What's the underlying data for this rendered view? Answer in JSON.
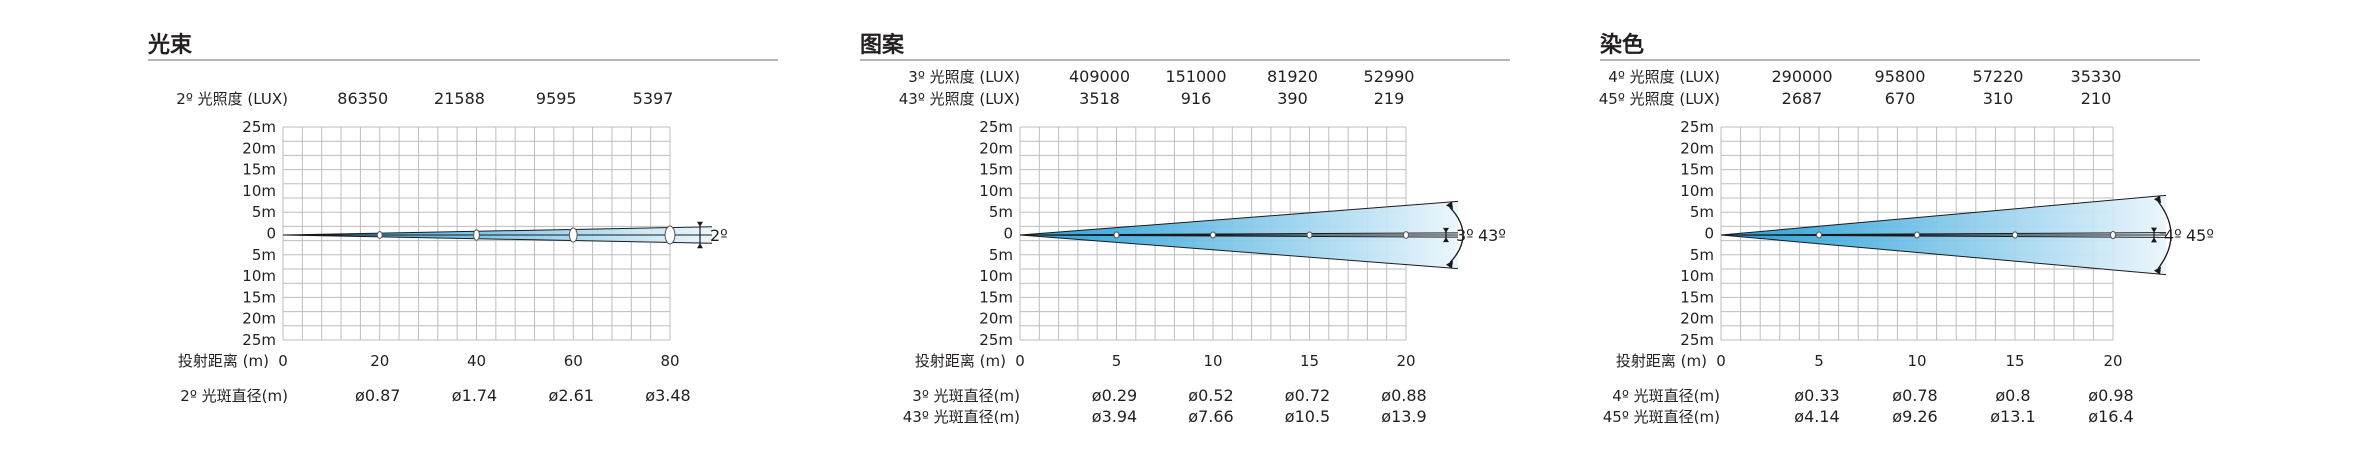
{
  "panels": [
    {
      "title": "光束",
      "lux_rows": [
        {
          "label": "2º 光照度 (LUX)",
          "values": [
            "86350",
            "21588",
            "9595",
            "5397"
          ]
        }
      ],
      "y_ticks": [
        "25m",
        "20m",
        "15m",
        "10m",
        "5m",
        "0",
        "5m",
        "10m",
        "15m",
        "20m",
        "25m"
      ],
      "x_label": "投射距离 (m)",
      "x_ticks": [
        "0",
        "20",
        "40",
        "60",
        "80"
      ],
      "diameter_rows": [
        {
          "label": "2º 光斑直径(m)",
          "values": [
            "ø0.87",
            "ø1.74",
            "ø2.61",
            "ø3.48"
          ]
        }
      ],
      "beams": [
        {
          "angle_label": "2º",
          "half_width_at_end_m": 1.74
        }
      ]
    },
    {
      "title": "图案",
      "lux_rows": [
        {
          "label": "3º 光照度 (LUX)",
          "values": [
            "409000",
            "151000",
            "81920",
            "52990"
          ]
        },
        {
          "label": "43º 光照度 (LUX)",
          "values": [
            "3518",
            "916",
            "390",
            "219"
          ]
        }
      ],
      "y_ticks": [
        "25m",
        "20m",
        "15m",
        "10m",
        "5m",
        "0",
        "5m",
        "10m",
        "15m",
        "20m",
        "25m"
      ],
      "x_label": "投射距离 (m)",
      "x_ticks": [
        "0",
        "5",
        "10",
        "15",
        "20"
      ],
      "diameter_rows": [
        {
          "label": "3º 光斑直径(m)",
          "values": [
            "ø0.29",
            "ø0.52",
            "ø0.72",
            "ø0.88"
          ]
        },
        {
          "label": "43º 光斑直径(m)",
          "values": [
            "ø3.94",
            "ø7.66",
            "ø10.5",
            "ø13.9"
          ]
        }
      ],
      "beams": [
        {
          "angle_label": "43º",
          "half_width_at_end_m": 6.95
        },
        {
          "angle_label": "3º",
          "half_width_at_end_m": 0.44
        }
      ]
    },
    {
      "title": "染色",
      "lux_rows": [
        {
          "label": "4º 光照度 (LUX)",
          "values": [
            "290000",
            "95800",
            "57220",
            "35330"
          ]
        },
        {
          "label": "45º 光照度 (LUX)",
          "values": [
            "2687",
            "670",
            "310",
            "210"
          ]
        }
      ],
      "y_ticks": [
        "25m",
        "20m",
        "15m",
        "10m",
        "5m",
        "0",
        "5m",
        "10m",
        "15m",
        "20m",
        "25m"
      ],
      "x_label": "投射距离 (m)",
      "x_ticks": [
        "0",
        "5",
        "10",
        "15",
        "20"
      ],
      "diameter_rows": [
        {
          "label": "4º 光斑直径(m)",
          "values": [
            "ø0.33",
            "ø0.78",
            "ø0.8",
            "ø0.98"
          ]
        },
        {
          "label": "45º 光斑直径(m)",
          "values": [
            "ø4.14",
            "ø9.26",
            "ø13.1",
            "ø16.4"
          ]
        }
      ],
      "beams": [
        {
          "angle_label": "45º",
          "half_width_at_end_m": 8.2
        },
        {
          "angle_label": "4º",
          "half_width_at_end_m": 0.49
        }
      ]
    }
  ],
  "colors": {
    "text": "#231f20",
    "grid": "#bdbdbd",
    "rule": "#8c8c8c",
    "beam_origin": "#1a9ad6",
    "beam_end": "#eaf5fc"
  }
}
